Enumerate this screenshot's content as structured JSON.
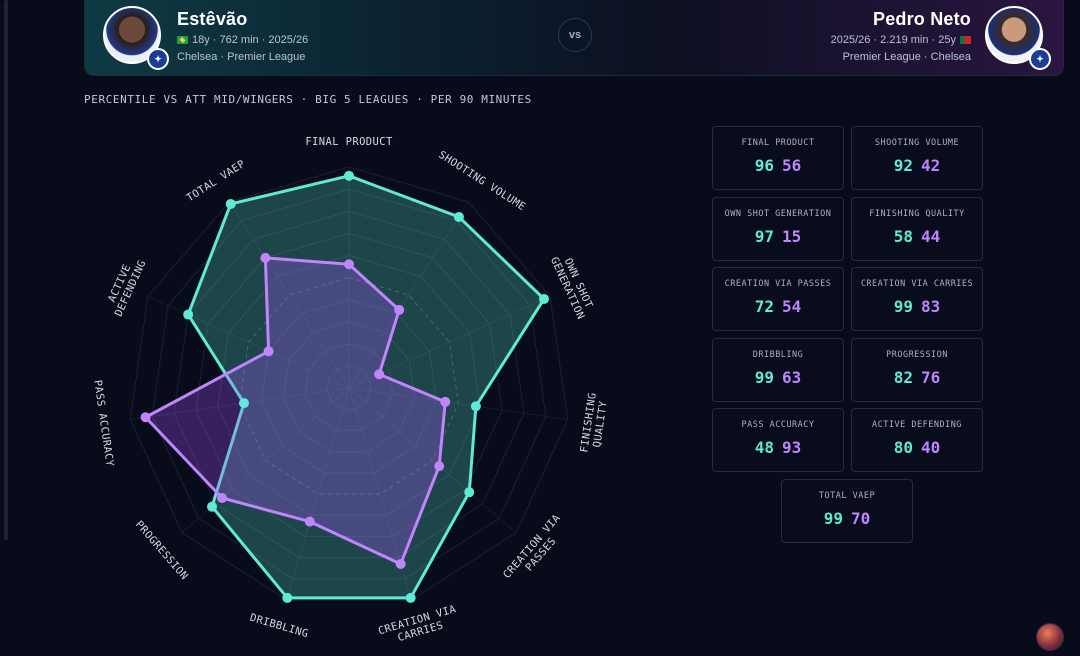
{
  "header": {
    "player1": {
      "name": "Estêvão",
      "meta": "18y · 762 min · 2025/26",
      "club": "Chelsea · Premier League",
      "flag": "brazil-flag-icon"
    },
    "vs": "vs",
    "player2": {
      "name": "Pedro Neto",
      "meta": "2025/26 · 2.219 min · 25y",
      "club": "Premier League · Chelsea",
      "flag": "portugal-flag-icon"
    }
  },
  "subtitle": "PERCENTILE VS ATT MID/WINGERS · BIG 5 LEAGUES · PER 90 MINUTES",
  "colors": {
    "player1": "#5eead4",
    "player2": "#c084fc"
  },
  "chart_data": {
    "type": "radar",
    "range": [
      0,
      100
    ],
    "axes": [
      [
        "FINAL PRODUCT"
      ],
      [
        "SHOOTING VOLUME"
      ],
      [
        "OWN SHOT",
        "GENERATION"
      ],
      [
        "FINISHING",
        "QUALITY"
      ],
      [
        "CREATION VIA",
        "PASSES"
      ],
      [
        "CREATION VIA",
        "CARRIES"
      ],
      [
        "DRIBBLING"
      ],
      [
        "PROGRESSION"
      ],
      [
        "PASS ACCURACY"
      ],
      [
        "ACTIVE",
        "DEFENDING"
      ],
      [
        "TOTAL VAEP"
      ]
    ],
    "series": [
      {
        "name": "Estêvão",
        "values": [
          96,
          92,
          97,
          58,
          72,
          99,
          99,
          82,
          48,
          80,
          99
        ]
      },
      {
        "name": "Pedro Neto",
        "values": [
          56,
          42,
          15,
          44,
          54,
          83,
          63,
          76,
          93,
          40,
          70
        ]
      }
    ]
  },
  "cards": [
    {
      "label": "FINAL PRODUCT",
      "v1": "96",
      "v2": "56"
    },
    {
      "label": "SHOOTING VOLUME",
      "v1": "92",
      "v2": "42"
    },
    {
      "label": "OWN SHOT GENERATION",
      "v1": "97",
      "v2": "15"
    },
    {
      "label": "FINISHING QUALITY",
      "v1": "58",
      "v2": "44"
    },
    {
      "label": "CREATION VIA PASSES",
      "v1": "72",
      "v2": "54"
    },
    {
      "label": "CREATION VIA CARRIES",
      "v1": "99",
      "v2": "83"
    },
    {
      "label": "DRIBBLING",
      "v1": "99",
      "v2": "63"
    },
    {
      "label": "PROGRESSION",
      "v1": "82",
      "v2": "76"
    },
    {
      "label": "PASS ACCURACY",
      "v1": "48",
      "v2": "93"
    },
    {
      "label": "ACTIVE DEFENDING",
      "v1": "80",
      "v2": "40"
    },
    {
      "label": "TOTAL VAEP",
      "v1": "99",
      "v2": "70"
    }
  ]
}
